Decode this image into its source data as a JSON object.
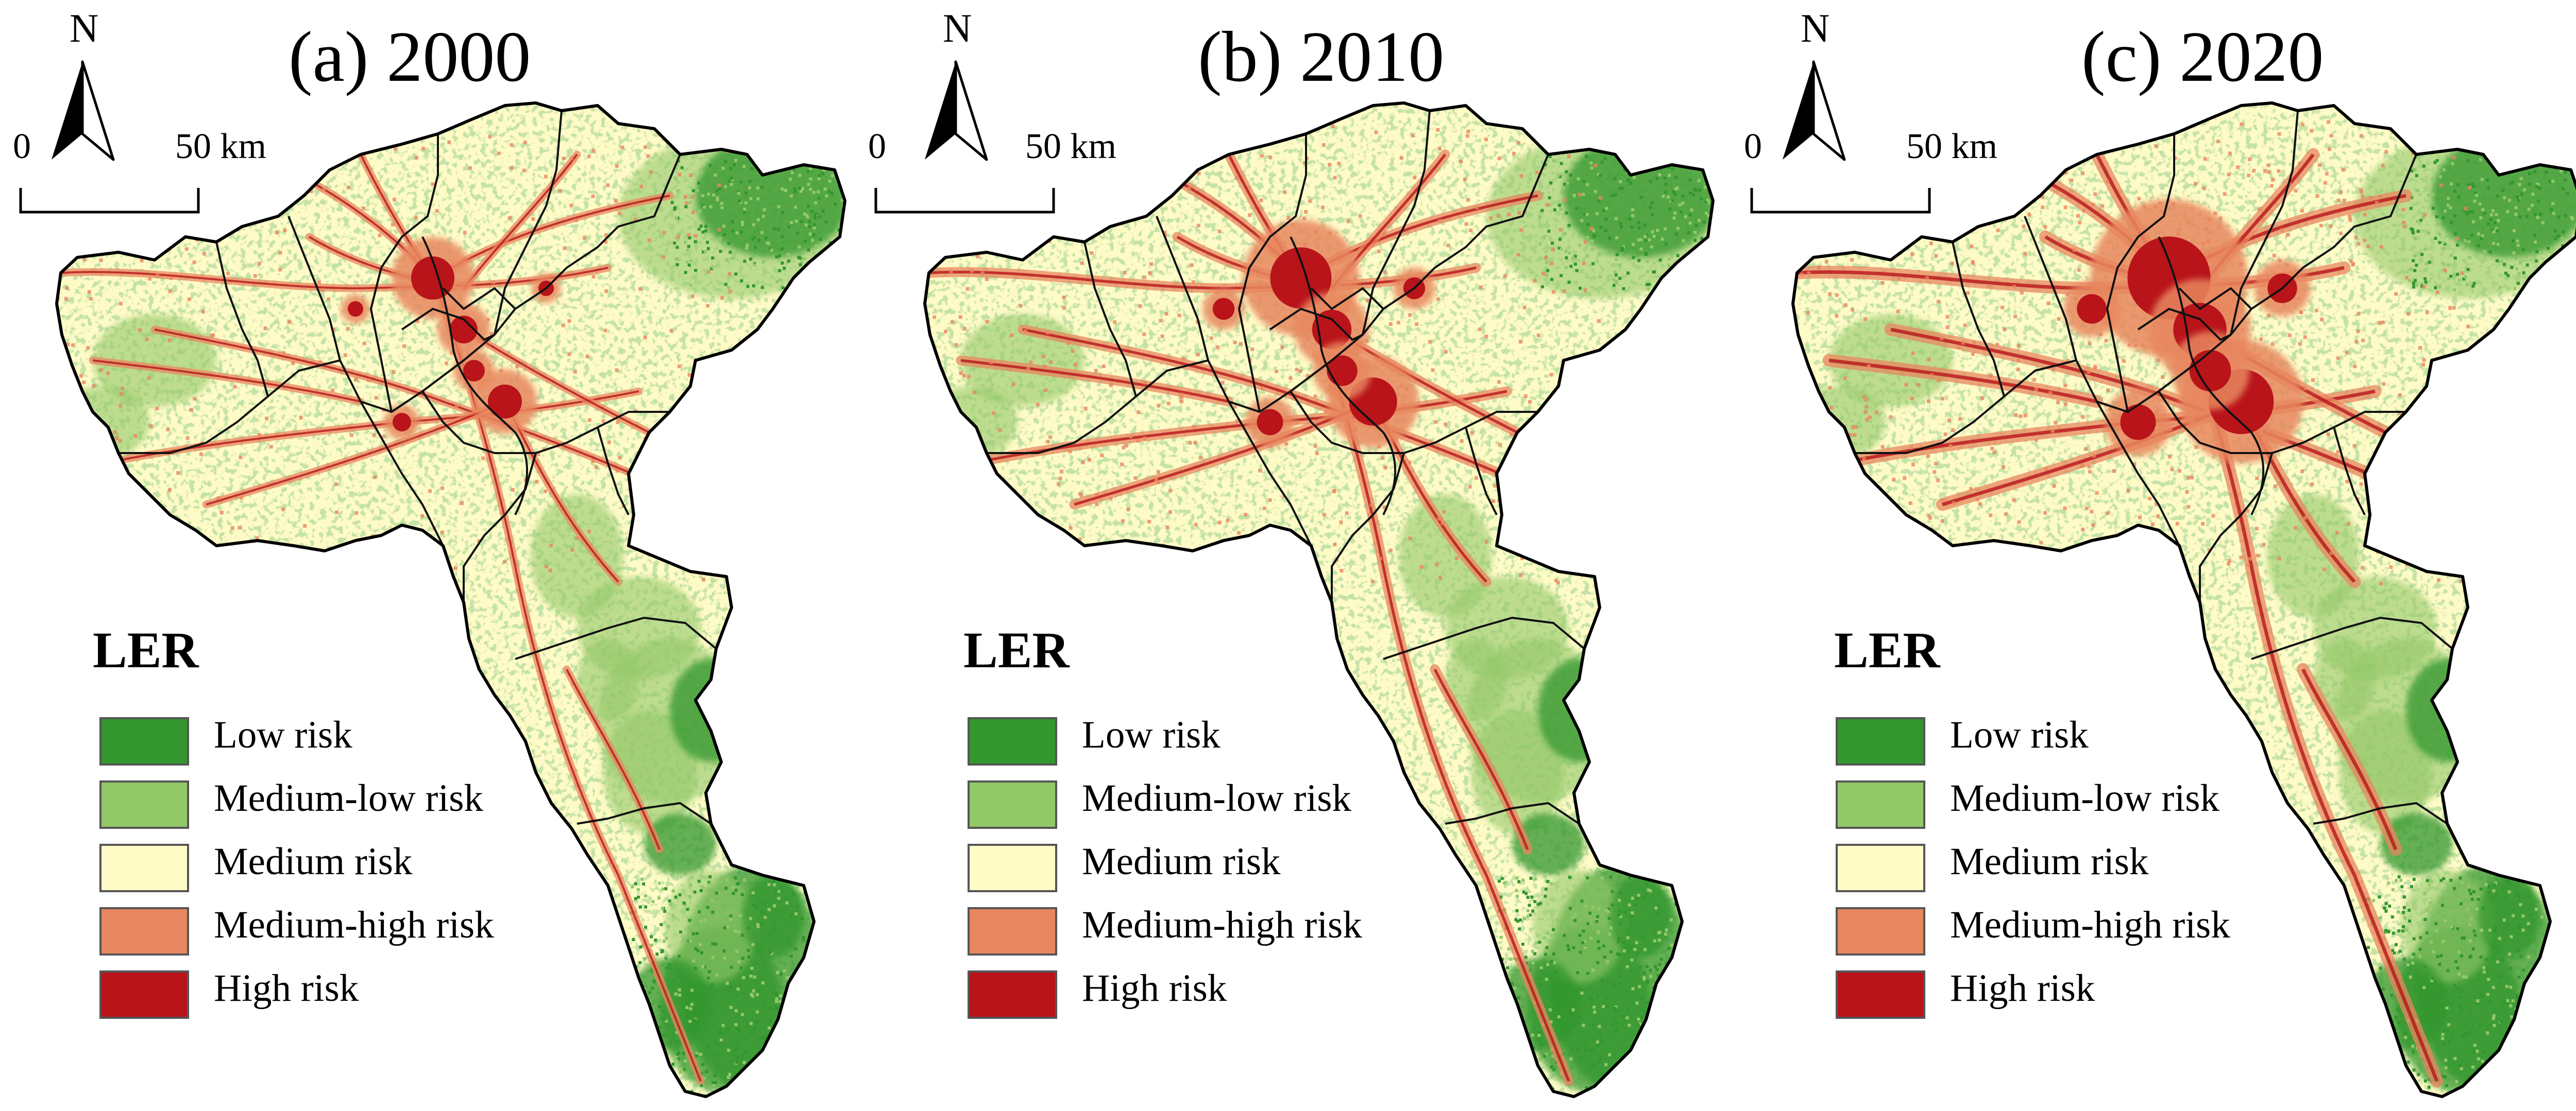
{
  "panels": [
    {
      "title": "(a) 2000",
      "year": 2000,
      "north": "N",
      "scale_zero": "0",
      "scale_end": "50 km"
    },
    {
      "title": "(b) 2010",
      "year": 2010,
      "north": "N",
      "scale_zero": "0",
      "scale_end": "50 km"
    },
    {
      "title": "(c) 2020",
      "year": 2020,
      "north": "N",
      "scale_zero": "0",
      "scale_end": "50 km"
    }
  ],
  "legend": {
    "title": "LER",
    "items": [
      {
        "label": "Low risk",
        "color": "#33962f"
      },
      {
        "label": "Medium-low risk",
        "color": "#93c869"
      },
      {
        "label": "Medium risk",
        "color": "#fffbc7"
      },
      {
        "label": "Medium-high risk",
        "color": "#e8875f"
      },
      {
        "label": "High risk",
        "color": "#b8141a"
      }
    ]
  }
}
